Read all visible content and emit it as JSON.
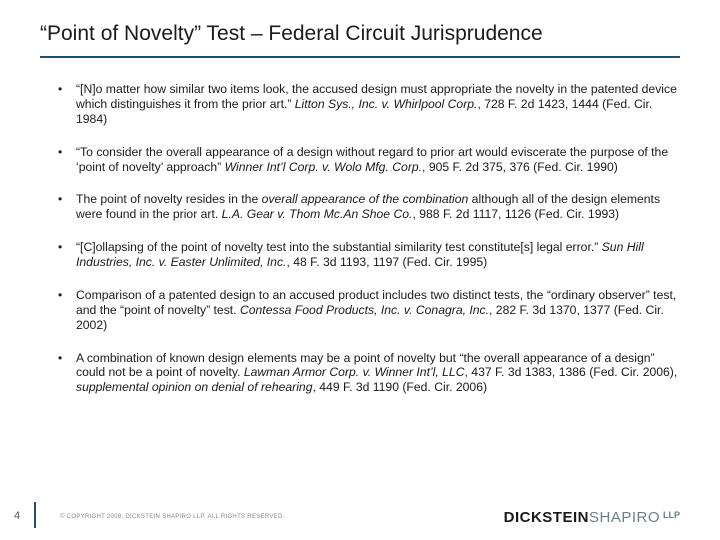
{
  "colors": {
    "accent_underline": "#1e4e6e",
    "accent_bar": "#1e4e6e",
    "logo_dark": "#1a1a1a",
    "logo_light": "#6b8085"
  },
  "title": "“Point of Novelty” Test – Federal Circuit Jurisprudence",
  "bullets": [
    {
      "text": "“[N]o matter how similar two items look, the accused design must appropriate the novelty in the patented device which distinguishes it from the prior art.” ",
      "case": "Litton Sys., Inc. v. Whirlpool Corp.",
      "cite": ", 728 F. 2d 1423, 1444 (Fed. Cir. 1984)"
    },
    {
      "text": "“To consider the overall appearance of a design without regard to prior art would eviscerate the purpose of the ‘point of novelty’ approach” ",
      "case": "Winner Int’l Corp. v. Wolo Mfg. Corp.",
      "cite": ", 905 F. 2d 375, 376 (Fed. Cir. 1990)"
    },
    {
      "text_pre": "The point of novelty resides in the ",
      "italic_mid": "overall appearance of the combination",
      "text_post": " although all of the design elements were found in the prior art. ",
      "case": "L.A. Gear v. Thom Mc.An Shoe Co.",
      "cite": ", 988 F. 2d 1117, 1126 (Fed. Cir. 1993)"
    },
    {
      "text": "“[C]ollapsing of the point of novelty test into the substantial similarity test constitute[s] legal error.” ",
      "case": "Sun Hill Industries, Inc. v. Easter Unlimited, Inc.",
      "cite": ", 48 F. 3d 1193, 1197 (Fed. Cir. 1995)"
    },
    {
      "text": "Comparison of a patented design to an accused product includes two distinct tests, the “ordinary observer” test, and the “point of novelty” test. ",
      "case": "Contessa Food Products, Inc. v. Conagra, Inc.",
      "cite": ", 282 F. 3d 1370, 1377 (Fed. Cir. 2002)"
    },
    {
      "text": "A combination of known design elements may be a point of novelty but “the overall appearance of a design” could not be a point of novelty. ",
      "case": "Lawman Armor Corp. v. Winner Int’l, LLC",
      "cite": ", 437 F. 3d 1383, 1386 (Fed. Cir. 2006), ",
      "italic_tail": "supplemental opinion on denial of rehearing",
      "cite2": ", 449 F. 3d 1190 (Fed. Cir. 2006)"
    }
  ],
  "page_number": "4",
  "copyright": "© COPYRIGHT 2008. DICKSTEIN SHAPIRO LLP. ALL RIGHTS RESERVED.",
  "logo": {
    "part1": "DICKSTEIN",
    "part2": "SHAPIRO",
    "suffix": "LLP"
  }
}
